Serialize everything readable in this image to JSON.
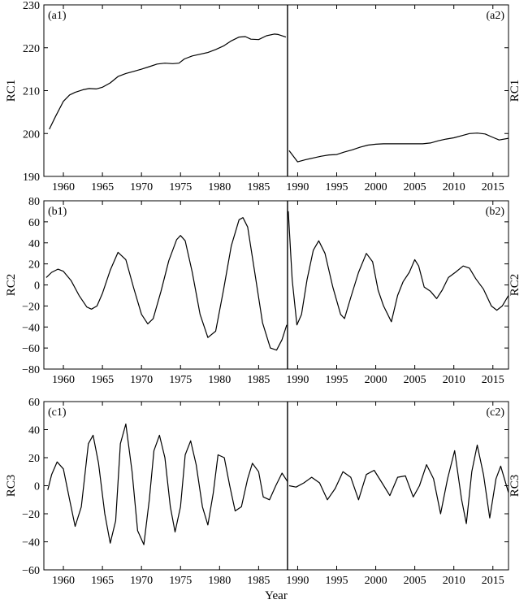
{
  "figure": {
    "xlabel": "Year"
  },
  "chart_data": [
    {
      "type": "line",
      "ylabel": "RC1",
      "right_ylabel": "RC1",
      "left_panel_label": "(a1)",
      "right_panel_label": "(a2)",
      "ylim": [
        190,
        230
      ],
      "yticks": [
        190,
        200,
        210,
        220,
        230
      ],
      "xlim": [
        1957.5,
        2017
      ],
      "xticks": [
        1960,
        1965,
        1970,
        1975,
        1980,
        1985,
        1990,
        1995,
        2000,
        2005,
        2010,
        2015
      ],
      "split_year": 1988.7,
      "grid": false,
      "left_series": {
        "x": [
          1958.2,
          1959,
          1960,
          1960.8,
          1961.5,
          1962.5,
          1963.3,
          1964.2,
          1965,
          1966,
          1967,
          1968,
          1969,
          1970,
          1971,
          1972,
          1973,
          1974,
          1974.8,
          1975.5,
          1976.5,
          1977.5,
          1978.5,
          1979.5,
          1980.5,
          1981.5,
          1982.5,
          1983.3,
          1984,
          1985,
          1986,
          1987,
          1987.5,
          1988.5
        ],
        "y": [
          201,
          204,
          207.5,
          209,
          209.6,
          210.2,
          210.5,
          210.4,
          210.8,
          211.8,
          213.3,
          214,
          214.5,
          215,
          215.6,
          216.2,
          216.4,
          216.3,
          216.4,
          217.4,
          218.1,
          218.5,
          218.9,
          219.6,
          220.4,
          221.6,
          222.5,
          222.6,
          222,
          221.9,
          222.8,
          223.2,
          223.1,
          222.5
        ]
      },
      "right_series": {
        "x": [
          1988.9,
          1990,
          1991,
          1992,
          1993,
          1994,
          1995,
          1996,
          1997,
          1998,
          1999,
          2000,
          2001,
          2002,
          2003,
          2004,
          2005,
          2006,
          2007,
          2008,
          2009,
          2010,
          2011,
          2012,
          2013,
          2014,
          2015,
          2015.8,
          2017
        ],
        "y": [
          196,
          193.4,
          193.9,
          194.3,
          194.7,
          195,
          195.1,
          195.7,
          196.2,
          196.8,
          197.3,
          197.5,
          197.6,
          197.6,
          197.6,
          197.6,
          197.6,
          197.6,
          197.8,
          198.3,
          198.7,
          199,
          199.5,
          200,
          200.1,
          199.9,
          199.1,
          198.5,
          198.9
        ]
      }
    },
    {
      "type": "line",
      "ylabel": "RC2",
      "right_ylabel": "RC2",
      "left_panel_label": "(b1)",
      "right_panel_label": "(b2)",
      "ylim": [
        -80,
        80
      ],
      "yticks": [
        -80,
        -60,
        -40,
        -20,
        0,
        20,
        40,
        60,
        80
      ],
      "xlim": [
        1957.5,
        2017
      ],
      "xticks": [
        1960,
        1965,
        1970,
        1975,
        1980,
        1985,
        1990,
        1995,
        2000,
        2005,
        2010,
        2015
      ],
      "split_year": 1988.7,
      "grid": false,
      "left_series": {
        "x": [
          1957.8,
          1958.5,
          1959.3,
          1960,
          1961,
          1962,
          1963,
          1963.6,
          1964.3,
          1965,
          1966,
          1967,
          1968,
          1969,
          1970,
          1970.8,
          1971.5,
          1972.5,
          1973.5,
          1974.5,
          1975,
          1975.6,
          1976.5,
          1977.5,
          1978.5,
          1979.5,
          1980.5,
          1981.5,
          1982.5,
          1983,
          1983.6,
          1984.5,
          1985.5,
          1986.5,
          1987.3,
          1988,
          1988.6
        ],
        "y": [
          7,
          12,
          15,
          13,
          4,
          -10,
          -21,
          -23,
          -20,
          -8,
          14,
          31,
          24,
          -3,
          -28,
          -37,
          -32,
          -6,
          23,
          43,
          47,
          42,
          12,
          -28,
          -50,
          -44,
          -5,
          37,
          62,
          64,
          55,
          12,
          -36,
          -60,
          -62,
          -52,
          -38
        ]
      },
      "right_series": {
        "x": [
          1988.8,
          1989.3,
          1989.9,
          1990.5,
          1991.2,
          1992,
          1992.7,
          1993.5,
          1994.5,
          1995.5,
          1996,
          1996.8,
          1997.8,
          1998.8,
          1999.6,
          2000.3,
          2001,
          2002,
          2002.8,
          2003.5,
          2004.3,
          2005,
          2005.5,
          2006.2,
          2007,
          2007.8,
          2008.5,
          2009.3,
          2010.2,
          2011.2,
          2012,
          2012.8,
          2013.8,
          2014.8,
          2015.5,
          2016.2,
          2017
        ],
        "y": [
          70,
          5,
          -38,
          -28,
          5,
          33,
          42,
          30,
          -2,
          -28,
          -32,
          -12,
          12,
          30,
          22,
          -5,
          -20,
          -35,
          -10,
          3,
          12,
          24,
          18,
          -2,
          -6,
          -13,
          -5,
          7,
          12,
          18,
          16,
          6,
          -4,
          -20,
          -24,
          -20,
          -10
        ]
      }
    },
    {
      "type": "line",
      "ylabel": "RC3",
      "right_ylabel": "RC3",
      "left_panel_label": "(c1)",
      "right_panel_label": "(c2)",
      "ylim": [
        -60,
        60
      ],
      "yticks": [
        -60,
        -40,
        -20,
        0,
        20,
        40,
        60
      ],
      "xlim": [
        1957.5,
        2017
      ],
      "xticks": [
        1960,
        1965,
        1970,
        1975,
        1980,
        1985,
        1990,
        1995,
        2000,
        2005,
        2010,
        2015
      ],
      "split_year": 1988.7,
      "grid": false,
      "left_series": {
        "x": [
          1958,
          1958.5,
          1959.2,
          1960,
          1960.8,
          1961.5,
          1962.3,
          1963.2,
          1963.8,
          1964.5,
          1965.3,
          1966,
          1966.7,
          1967.3,
          1968,
          1968.8,
          1969.5,
          1970.3,
          1971,
          1971.6,
          1972.3,
          1973,
          1973.7,
          1974.3,
          1975,
          1975.6,
          1976.3,
          1977,
          1977.8,
          1978.5,
          1979.2,
          1979.8,
          1980.6,
          1981.3,
          1982,
          1982.8,
          1983.6,
          1984.2,
          1985,
          1985.6,
          1986.4,
          1987.2,
          1988,
          1988.7
        ],
        "y": [
          -3,
          8,
          17,
          12,
          -10,
          -29,
          -15,
          30,
          36,
          16,
          -20,
          -41,
          -25,
          30,
          44,
          10,
          -32,
          -42,
          -10,
          25,
          36,
          20,
          -15,
          -33,
          -15,
          22,
          32,
          15,
          -15,
          -28,
          -5,
          22,
          20,
          0,
          -18,
          -15,
          5,
          16,
          10,
          -8,
          -10,
          0,
          9,
          3
        ]
      },
      "right_series": {
        "x": [
          1988.9,
          1989.8,
          1990.8,
          1991.8,
          1992.8,
          1993.8,
          1994.8,
          1995.8,
          1996.8,
          1997.8,
          1998.8,
          1999.8,
          2000.8,
          2001.8,
          2002.8,
          2003.8,
          2004.8,
          2005.6,
          2006.5,
          2007.4,
          2008.3,
          2009.2,
          2010.1,
          2011,
          2011.6,
          2012.3,
          2013,
          2013.8,
          2014.6,
          2015.4,
          2016,
          2017
        ],
        "y": [
          0,
          -1,
          2,
          6,
          2,
          -10,
          -2,
          10,
          6,
          -10,
          8,
          11,
          2,
          -7,
          6,
          7,
          -8,
          0,
          15,
          5,
          -20,
          5,
          25,
          -10,
          -27,
          10,
          29,
          8,
          -23,
          5,
          14,
          -5
        ]
      }
    }
  ]
}
